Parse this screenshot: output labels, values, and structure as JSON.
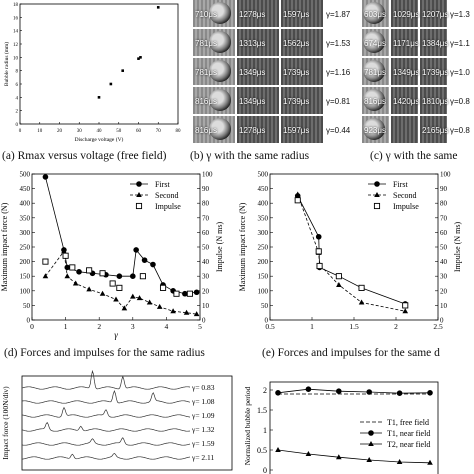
{
  "captions": {
    "a": "(a) Rmax versus voltage (free field)",
    "b": "(b) γ with the same radius",
    "c": "(c) γ with the same",
    "d": "(d) Forces and impulses  for the same radius",
    "e": "(e) Forces and impulses  for the same d"
  },
  "panel_b": {
    "rows": [
      {
        "t1": "710μs",
        "t2": "1278μs",
        "t3": "1597μs",
        "gamma": "γ=1.87"
      },
      {
        "t1": "781μs",
        "t2": "1313μs",
        "t3": "1562μs",
        "gamma": "γ=1.53"
      },
      {
        "t1": "781μs",
        "t2": "1349μs",
        "t3": "1739μs",
        "gamma": "γ=1.16"
      },
      {
        "t1": "816μs",
        "t2": "1349μs",
        "t3": "1739μs",
        "gamma": "γ=0.81"
      },
      {
        "t1": "816μs",
        "t2": "1278μs",
        "t3": "1597μs",
        "gamma": "γ=0.44"
      }
    ]
  },
  "panel_c": {
    "rows": [
      {
        "t1": "603μs",
        "t2": "1029μs",
        "t3": "1207μs",
        "gamma": "γ=1.3"
      },
      {
        "t1": "674μs",
        "t2": "1171μs",
        "t3": "1384μs",
        "gamma": "γ=1.1"
      },
      {
        "t1": "781μs",
        "t2": "1349μs",
        "t3": "1739μs",
        "gamma": "γ=1.0"
      },
      {
        "t1": "816μs",
        "t2": "1420μs",
        "t3": "1810μs",
        "gamma": "γ=0.8"
      },
      {
        "t1": "923μs",
        "t2": "",
        "t3": "2165μs",
        "gamma": "γ=0.8"
      }
    ]
  },
  "panel_g": {
    "ylabel": "Impact force (100N/div)",
    "gammas": [
      "γ= 0.83",
      "γ= 1.08",
      "γ= 1.09",
      "γ= 1.32",
      "γ= 1.59",
      "γ= 2.11"
    ]
  },
  "chart_data": [
    {
      "id": "a",
      "type": "scatter",
      "xlabel": "Discharge voltage (V)",
      "ylabel": "Bubble radius (mm)",
      "xlim": [
        0,
        80
      ],
      "ylim": [
        0,
        18
      ],
      "xticks": [
        "0",
        "10",
        "20",
        "30",
        "40",
        "50",
        "60",
        "70",
        "80"
      ],
      "yticks": [
        "0",
        "2",
        "4",
        "6",
        "8",
        "10",
        "12",
        "14",
        "16",
        "18"
      ],
      "x": [
        40,
        46,
        52,
        60,
        61,
        70
      ],
      "y": [
        4.0,
        6.0,
        8.0,
        9.8,
        10.0,
        17.5
      ]
    },
    {
      "id": "d",
      "type": "line",
      "xlabel": "γ",
      "ylabel": "Maximum impact force (N)",
      "y2label": "Impulse (N ms)",
      "xlim": [
        0,
        5
      ],
      "ylim": [
        0,
        500
      ],
      "y2lim": [
        0,
        100
      ],
      "xticks": [
        "0",
        "1",
        "2",
        "3",
        "4",
        "5"
      ],
      "yticks": [
        "0",
        "50",
        "100",
        "150",
        "200",
        "250",
        "300",
        "350",
        "400",
        "450",
        "500"
      ],
      "y2ticks": [
        "0",
        "10",
        "20",
        "30",
        "40",
        "50",
        "60",
        "70",
        "80",
        "90",
        "100"
      ],
      "legend_position": "top-right",
      "series": [
        {
          "name": "First",
          "marker": "circle",
          "x": [
            0.4,
            0.95,
            1.05,
            1.4,
            1.8,
            2.2,
            2.6,
            3.0,
            3.1,
            3.35,
            3.6,
            3.9,
            4.2,
            4.55,
            4.9
          ],
          "y": [
            490,
            240,
            180,
            165,
            160,
            155,
            150,
            150,
            240,
            205,
            190,
            120,
            100,
            90,
            95
          ]
        },
        {
          "name": "Second",
          "marker": "triangle",
          "x": [
            0.4,
            0.95,
            1.05,
            1.3,
            1.7,
            2.1,
            2.5,
            2.75,
            3.0,
            3.2,
            3.5,
            3.8,
            4.2,
            4.6,
            4.9
          ],
          "y": [
            150,
            235,
            150,
            125,
            105,
            90,
            70,
            40,
            80,
            75,
            60,
            45,
            30,
            25,
            20
          ]
        },
        {
          "name": "Impulse",
          "marker": "square",
          "axis": "right",
          "x": [
            0.4,
            1.0,
            1.2,
            1.7,
            2.1,
            2.4,
            2.6,
            3.3,
            3.9,
            4.3,
            4.7
          ],
          "y": [
            40,
            44,
            36,
            34,
            32,
            25,
            22,
            30,
            22,
            18,
            18
          ]
        }
      ]
    },
    {
      "id": "e",
      "type": "line",
      "ylabel": "Maximum impact force (N)",
      "y2label": "Impulse (N ms)",
      "xlim": [
        0.5,
        2.5
      ],
      "ylim": [
        0,
        500
      ],
      "y2lim": [
        0,
        100
      ],
      "xticks": [
        "0.5",
        "1",
        "1.5",
        "2",
        "2.5"
      ],
      "yticks": [
        "0",
        "50",
        "100",
        "150",
        "200",
        "250",
        "300",
        "350",
        "400",
        "450",
        "500"
      ],
      "y2ticks": [
        "0",
        "10",
        "20",
        "30",
        "40",
        "50",
        "60",
        "70",
        "80",
        "90",
        "100"
      ],
      "legend_position": "top-right",
      "series": [
        {
          "name": "First",
          "marker": "circle",
          "x": [
            0.83,
            1.08,
            1.09,
            1.32,
            1.59,
            2.11
          ],
          "y": [
            425,
            285,
            180,
            150,
            110,
            55
          ]
        },
        {
          "name": "Second",
          "marker": "triangle",
          "x": [
            0.83,
            1.08,
            1.09,
            1.32,
            1.59,
            2.11
          ],
          "y": [
            430,
            230,
            190,
            120,
            60,
            30
          ]
        },
        {
          "name": "Impulse",
          "marker": "square",
          "axis": "right",
          "x": [
            0.83,
            1.08,
            1.09,
            1.32,
            1.59,
            2.11
          ],
          "y": [
            82,
            47,
            37,
            30,
            22,
            10
          ]
        }
      ]
    },
    {
      "id": "f",
      "type": "line",
      "ylabel": "Normalized bubble period",
      "ylim": [
        0,
        2.2
      ],
      "yticks": [
        "0",
        "0.5",
        "1",
        "1.5",
        "2"
      ],
      "legend_position": "center-right",
      "series": [
        {
          "name": "T1, free field",
          "style": "dashed",
          "x": [
            0,
            1
          ],
          "y": [
            1.9,
            1.9
          ]
        },
        {
          "name": "T1, near field",
          "marker": "circle",
          "x": [
            0.0,
            0.2,
            0.4,
            0.6,
            0.8,
            1.0
          ],
          "y": [
            1.93,
            2.02,
            1.97,
            1.95,
            1.92,
            1.93
          ]
        },
        {
          "name": "T2, near field",
          "marker": "triangle",
          "x": [
            0.0,
            0.2,
            0.4,
            0.6,
            0.8,
            1.0
          ],
          "y": [
            0.5,
            0.4,
            0.32,
            0.25,
            0.2,
            0.18
          ]
        }
      ]
    }
  ]
}
